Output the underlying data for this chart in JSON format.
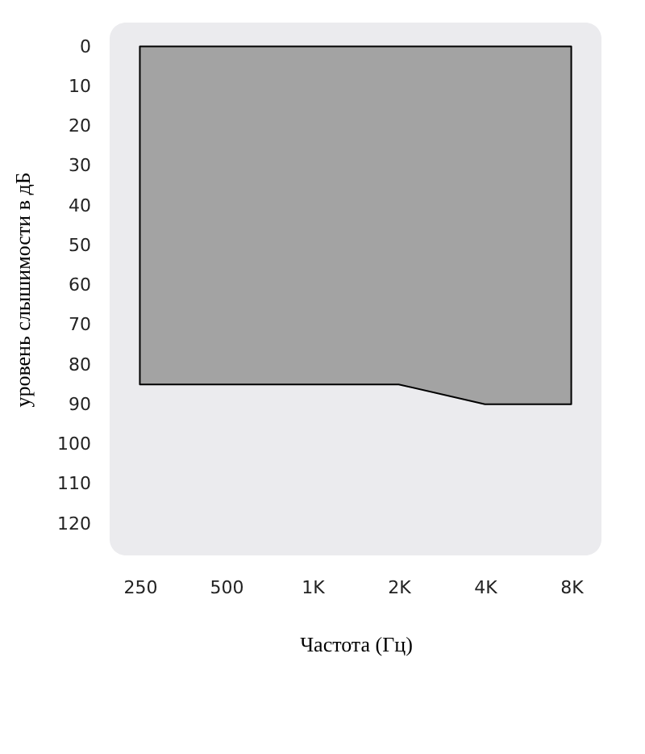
{
  "chart_data": {
    "type": "area",
    "xlabel": "Частота (Гц)",
    "ylabel": "уровень слышимости в дБ",
    "categories": [
      "250",
      "500",
      "1K",
      "2K",
      "4K",
      "8K"
    ],
    "series": [
      {
        "color": "#a3a3a3",
        "values": [
          85,
          85,
          85,
          85,
          90,
          90
        ]
      }
    ],
    "ylim": [
      128,
      -6
    ],
    "yticks": [
      0,
      10,
      20,
      30,
      40,
      50,
      60,
      70,
      80,
      90,
      100,
      110,
      120
    ],
    "grid": false
  }
}
